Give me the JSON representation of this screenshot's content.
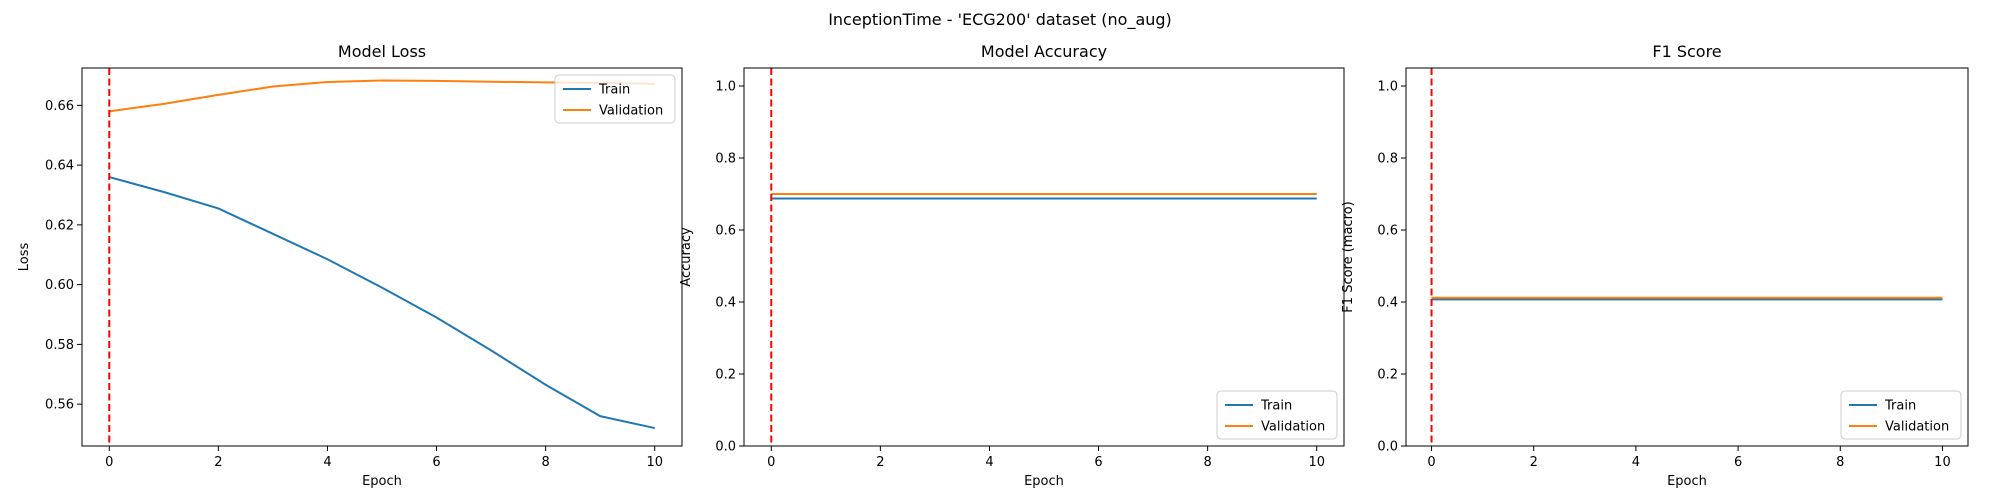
{
  "figure": {
    "title": "InceptionTime - 'ECG200' dataset (no_aug)"
  },
  "colors": {
    "train": "#1f77b4",
    "validation": "#ff7f0e",
    "marker": "#ff0000",
    "axes": "#000000"
  },
  "chart_data": [
    {
      "type": "line",
      "title": "Model Loss",
      "xlabel": "Epoch",
      "ylabel": "Loss",
      "xlim": [
        -0.5,
        10.5
      ],
      "ylim": [
        0.546,
        0.6725
      ],
      "xticks": [
        0,
        2,
        4,
        6,
        8,
        10
      ],
      "xtick_labels": [
        "0",
        "2",
        "4",
        "6",
        "8",
        "10"
      ],
      "yticks": [
        0.56,
        0.58,
        0.6,
        0.62,
        0.64,
        0.66
      ],
      "ytick_labels": [
        "0.56",
        "0.58",
        "0.60",
        "0.62",
        "0.64",
        "0.66"
      ],
      "x": [
        0,
        1,
        2,
        3,
        4,
        5,
        6,
        7,
        8,
        9,
        10
      ],
      "series": [
        {
          "name": "Train",
          "color": "#1f77b4",
          "values": [
            0.636,
            0.631,
            0.6255,
            0.617,
            0.6085,
            0.599,
            0.589,
            0.578,
            0.5665,
            0.556,
            0.552
          ]
        },
        {
          "name": "Validation",
          "color": "#ff7f0e",
          "values": [
            0.658,
            0.6605,
            0.6635,
            0.6663,
            0.6678,
            0.6683,
            0.6682,
            0.6679,
            0.6677,
            0.6675,
            0.6672
          ]
        }
      ],
      "vline": 0,
      "legend": "upper right"
    },
    {
      "type": "line",
      "title": "Model Accuracy",
      "xlabel": "Epoch",
      "ylabel": "Accuracy",
      "xlim": [
        -0.5,
        10.5
      ],
      "ylim": [
        0,
        1.05
      ],
      "xticks": [
        0,
        2,
        4,
        6,
        8,
        10
      ],
      "xtick_labels": [
        "0",
        "2",
        "4",
        "6",
        "8",
        "10"
      ],
      "yticks": [
        0,
        0.2,
        0.4,
        0.6,
        0.8,
        1.0
      ],
      "ytick_labels": [
        "0.0",
        "0.2",
        "0.4",
        "0.6",
        "0.8",
        "1.0"
      ],
      "x": [
        0,
        1,
        2,
        3,
        4,
        5,
        6,
        7,
        8,
        9,
        10
      ],
      "series": [
        {
          "name": "Train",
          "color": "#1f77b4",
          "values": [
            0.6875,
            0.6875,
            0.6875,
            0.6875,
            0.6875,
            0.6875,
            0.6875,
            0.6875,
            0.6875,
            0.6875,
            0.6875
          ]
        },
        {
          "name": "Validation",
          "color": "#ff7f0e",
          "values": [
            0.7,
            0.7,
            0.7,
            0.7,
            0.7,
            0.7,
            0.7,
            0.7,
            0.7,
            0.7,
            0.7
          ]
        }
      ],
      "vline": 0,
      "legend": "lower right"
    },
    {
      "type": "line",
      "title": "F1 Score",
      "xlabel": "Epoch",
      "ylabel": "F1 Score (macro)",
      "xlim": [
        -0.5,
        10.5
      ],
      "ylim": [
        0,
        1.05
      ],
      "xticks": [
        0,
        2,
        4,
        6,
        8,
        10
      ],
      "xtick_labels": [
        "0",
        "2",
        "4",
        "6",
        "8",
        "10"
      ],
      "yticks": [
        0,
        0.2,
        0.4,
        0.6,
        0.8,
        1.0
      ],
      "ytick_labels": [
        "0.0",
        "0.2",
        "0.4",
        "0.6",
        "0.8",
        "1.0"
      ],
      "x": [
        0,
        1,
        2,
        3,
        4,
        5,
        6,
        7,
        8,
        9,
        10
      ],
      "series": [
        {
          "name": "Train",
          "color": "#1f77b4",
          "values": [
            0.4074,
            0.4074,
            0.4074,
            0.4074,
            0.4074,
            0.4074,
            0.4074,
            0.4074,
            0.4074,
            0.4074,
            0.4074
          ]
        },
        {
          "name": "Validation",
          "color": "#ff7f0e",
          "values": [
            0.4118,
            0.4118,
            0.4118,
            0.4118,
            0.4118,
            0.4118,
            0.4118,
            0.4118,
            0.4118,
            0.4118,
            0.4118
          ]
        }
      ],
      "vline": 0,
      "legend": "lower right"
    }
  ]
}
